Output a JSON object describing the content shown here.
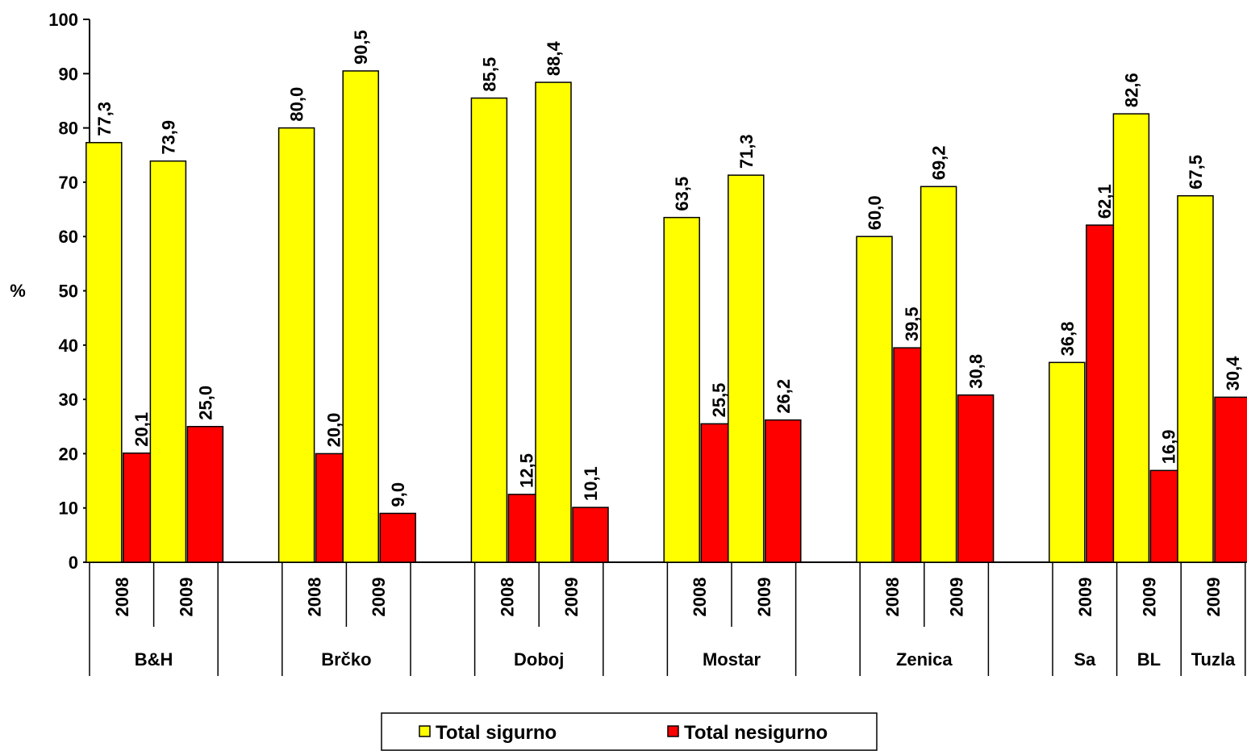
{
  "chart_data": {
    "type": "bar",
    "ylabel": "%",
    "ylim": [
      0,
      100
    ],
    "yticks": [
      "0",
      "10",
      "20",
      "30",
      "40",
      "50",
      "60",
      "70",
      "80",
      "90",
      "100"
    ],
    "groups": [
      {
        "label": "B&H",
        "years": [
          "2008",
          "2009"
        ]
      },
      {
        "label": "Brčko",
        "years": [
          "2008",
          "2009"
        ]
      },
      {
        "label": "Doboj",
        "years": [
          "2008",
          "2009"
        ]
      },
      {
        "label": "Mostar",
        "years": [
          "2008",
          "2009"
        ]
      },
      {
        "label": "Zenica",
        "years": [
          "2008",
          "2009"
        ]
      },
      {
        "label": "Sa",
        "years": [
          "2009"
        ]
      },
      {
        "label": "BL",
        "years": [
          "2009"
        ]
      },
      {
        "label": "Tuzla",
        "years": [
          "2009"
        ]
      }
    ],
    "series": [
      {
        "name": "Total sigurno",
        "color": "#ffff00",
        "values": [
          77.3,
          73.9,
          80.0,
          90.5,
          85.5,
          88.4,
          63.5,
          71.3,
          60.0,
          69.2,
          36.8,
          82.6,
          67.5
        ],
        "labels": [
          "77,3",
          "73,9",
          "80,0",
          "90,5",
          "85,5",
          "88,4",
          "63,5",
          "71,3",
          "60,0",
          "69,2",
          "36,8",
          "82,6",
          "67,5"
        ]
      },
      {
        "name": "Total nesigurno",
        "color": "#ff0000",
        "values": [
          20.1,
          25.0,
          20.0,
          9.0,
          12.5,
          10.1,
          25.5,
          26.2,
          39.5,
          30.8,
          62.1,
          16.9,
          30.4
        ],
        "labels": [
          "20,1",
          "25,0",
          "20,0",
          "9,0",
          "12,5",
          "10,1",
          "25,5",
          "26,2",
          "39,5",
          "30,8",
          "62,1",
          "16,9",
          "30,4"
        ]
      }
    ],
    "legend_position": "bottom-center",
    "grid": false
  }
}
